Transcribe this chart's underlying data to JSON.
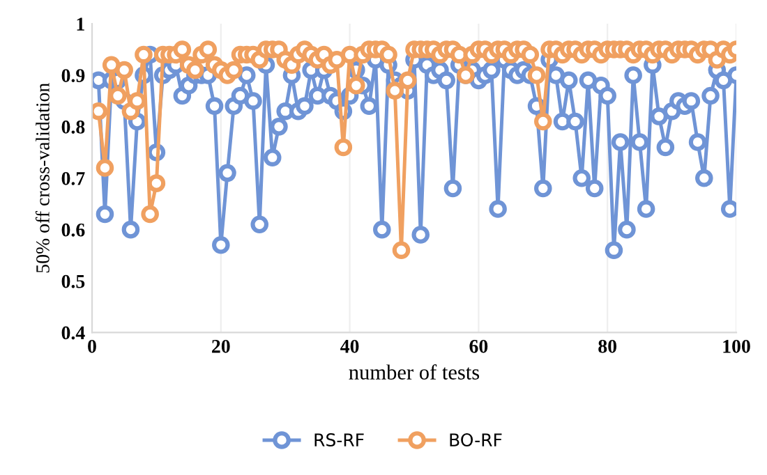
{
  "chart_data": {
    "type": "line",
    "xlabel": "number of tests",
    "ylabel": "50% off cross-validation",
    "x": [
      1,
      2,
      3,
      4,
      5,
      6,
      7,
      8,
      9,
      10,
      11,
      12,
      13,
      14,
      15,
      16,
      17,
      18,
      19,
      20,
      21,
      22,
      23,
      24,
      25,
      26,
      27,
      28,
      29,
      30,
      31,
      32,
      33,
      34,
      35,
      36,
      37,
      38,
      39,
      40,
      41,
      42,
      43,
      44,
      45,
      46,
      47,
      48,
      49,
      50,
      51,
      52,
      53,
      54,
      55,
      56,
      57,
      58,
      59,
      60,
      61,
      62,
      63,
      64,
      65,
      66,
      67,
      68,
      69,
      70,
      71,
      72,
      73,
      74,
      75,
      76,
      77,
      78,
      79,
      80,
      81,
      82,
      83,
      84,
      85,
      86,
      87,
      88,
      89,
      90,
      91,
      92,
      93,
      94,
      95,
      96,
      97,
      98,
      99,
      100
    ],
    "series": [
      {
        "name": "RS-RF",
        "color": "#6f94d6",
        "values": [
          0.89,
          0.63,
          0.89,
          0.89,
          0.85,
          0.6,
          0.81,
          0.9,
          0.94,
          0.75,
          0.9,
          0.91,
          0.92,
          0.86,
          0.88,
          0.9,
          0.9,
          0.9,
          0.84,
          0.57,
          0.71,
          0.84,
          0.86,
          0.9,
          0.85,
          0.61,
          0.92,
          0.74,
          0.8,
          0.83,
          0.9,
          0.83,
          0.84,
          0.91,
          0.86,
          0.91,
          0.86,
          0.85,
          0.83,
          0.86,
          0.91,
          0.88,
          0.84,
          0.93,
          0.6,
          0.92,
          0.89,
          0.88,
          0.87,
          0.93,
          0.59,
          0.92,
          0.9,
          0.91,
          0.89,
          0.68,
          0.92,
          0.9,
          0.91,
          0.89,
          0.9,
          0.91,
          0.64,
          0.93,
          0.91,
          0.9,
          0.91,
          0.9,
          0.84,
          0.68,
          0.93,
          0.9,
          0.81,
          0.89,
          0.81,
          0.7,
          0.89,
          0.68,
          0.88,
          0.86,
          0.56,
          0.77,
          0.6,
          0.9,
          0.77,
          0.64,
          0.92,
          0.82,
          0.76,
          0.83,
          0.85,
          0.84,
          0.85,
          0.77,
          0.7,
          0.86,
          0.91,
          0.89,
          0.64,
          0.9
        ]
      },
      {
        "name": "BO-RF",
        "color": "#f0a060",
        "values": [
          0.83,
          0.72,
          0.92,
          0.86,
          0.91,
          0.83,
          0.85,
          0.94,
          0.63,
          0.69,
          0.94,
          0.94,
          0.94,
          0.95,
          0.92,
          0.91,
          0.94,
          0.95,
          0.92,
          0.91,
          0.9,
          0.91,
          0.94,
          0.94,
          0.94,
          0.93,
          0.95,
          0.95,
          0.95,
          0.93,
          0.92,
          0.94,
          0.95,
          0.94,
          0.93,
          0.94,
          0.92,
          0.93,
          0.76,
          0.94,
          0.88,
          0.94,
          0.95,
          0.95,
          0.95,
          0.94,
          0.87,
          0.56,
          0.89,
          0.95,
          0.95,
          0.95,
          0.95,
          0.94,
          0.95,
          0.95,
          0.94,
          0.9,
          0.94,
          0.95,
          0.95,
          0.94,
          0.95,
          0.95,
          0.94,
          0.95,
          0.95,
          0.94,
          0.9,
          0.81,
          0.95,
          0.95,
          0.94,
          0.95,
          0.95,
          0.94,
          0.95,
          0.95,
          0.94,
          0.95,
          0.95,
          0.95,
          0.95,
          0.94,
          0.95,
          0.95,
          0.94,
          0.95,
          0.95,
          0.94,
          0.95,
          0.95,
          0.95,
          0.94,
          0.95,
          0.95,
          0.93,
          0.95,
          0.94,
          0.95
        ]
      }
    ],
    "xlim": [
      0,
      100
    ],
    "xticks": [
      0,
      20,
      40,
      60,
      80,
      100
    ],
    "ylim": [
      0.4,
      1
    ],
    "yticks": [
      0.4,
      0.5,
      0.6,
      0.7,
      0.8,
      0.9,
      {
        "value": 1,
        "label": "1"
      }
    ],
    "grid": "x",
    "legend": "bottom",
    "marker": "circle",
    "line_style": "solid"
  }
}
